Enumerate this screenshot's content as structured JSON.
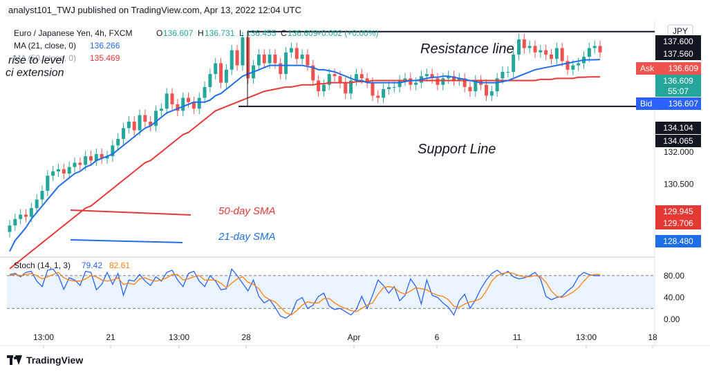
{
  "header": {
    "text": "analyst101_TWJ published on TradingView.com, Apr 13, 2022 12:04 UTC"
  },
  "footer": {
    "brand": "TradingView"
  },
  "legend": {
    "symbol": "Euro / Japanese Yen, 4h, FXCM",
    "ohlc": [
      {
        "k": "O",
        "v": "136.607"
      },
      {
        "k": "H",
        "v": "136.731"
      },
      {
        "k": "L",
        "v": "136.455"
      },
      {
        "k": "C",
        "v": "136.609"
      }
    ],
    "change": "+0.002 (+0.00%)",
    "ma21_label": "MA (21, close, 0)",
    "ma21_value": "136.266",
    "ma50_label": "MA (50, close, 0)",
    "ma50_value": "135.469",
    "overlay_line1": "rise to level",
    "overlay_line2": "ci extension"
  },
  "annotations": {
    "resistance": "Resistance line",
    "support": "Support Line",
    "sma50": "50-day SMA",
    "sma21": "21-day SMA"
  },
  "price_axis": {
    "currency": "JPY",
    "ticks": [
      "132.000",
      "130.500",
      "128.480"
    ],
    "markers": [
      {
        "text": "137.600",
        "style": "dark"
      },
      {
        "text": "137.560",
        "style": "dark"
      },
      {
        "text": "134.104",
        "style": "dark"
      },
      {
        "text": "134.065",
        "style": "dark"
      },
      {
        "text": "129.945",
        "style": "red"
      },
      {
        "text": "129.706",
        "style": "red"
      },
      {
        "text": "128.480",
        "style": "blue"
      }
    ],
    "ask": {
      "label": "Ask",
      "price": "136.609"
    },
    "last": {
      "price": "136.609",
      "countdown": "55:07"
    },
    "bid": {
      "label": "Bid",
      "price": "136.607"
    }
  },
  "stoch": {
    "label": "Stoch (14, 1, 3)",
    "k_value": "79.42",
    "d_value": "82.61",
    "ticks": [
      "80.00",
      "40.00",
      "0.00"
    ]
  },
  "time_axis": [
    "13:00",
    "21",
    "13:00",
    "28",
    "Apr",
    "6",
    "11",
    "13:00",
    "18"
  ],
  "chart_data": {
    "type": "line",
    "title": "Euro / Japanese Yen, 4h, FXCM",
    "price_range": [
      127.2,
      138.0
    ],
    "close": [
      128.6,
      128.9,
      129.1,
      129.0,
      129.4,
      129.8,
      130.2,
      130.9,
      131.1,
      131.2,
      131.0,
      131.3,
      131.5,
      131.4,
      131.8,
      131.6,
      131.9,
      131.7,
      131.8,
      132.3,
      132.6,
      133.1,
      133.4,
      133.0,
      133.7,
      133.4,
      133.2,
      133.9,
      134.0,
      134.7,
      134.2,
      133.9,
      134.5,
      134.3,
      134.0,
      134.5,
      135.0,
      135.6,
      136.1,
      135.2,
      135.8,
      136.7,
      136.0,
      137.3,
      135.4,
      136.0,
      136.5,
      136.1,
      136.5,
      136.1,
      135.6,
      136.6,
      136.8,
      136.3,
      136.5,
      136.0,
      135.3,
      134.8,
      135.1,
      135.6,
      135.5,
      135.2,
      134.7,
      135.3,
      135.6,
      135.4,
      135.2,
      134.6,
      134.5,
      134.9,
      135.0,
      135.0,
      135.3,
      135.4,
      135.1,
      135.2,
      135.5,
      135.6,
      135.4,
      135.1,
      135.4,
      135.5,
      135.3,
      135.4,
      135.0,
      134.8,
      135.3,
      135.1,
      134.6,
      134.8,
      135.4,
      135.7,
      135.7,
      136.5,
      137.2,
      136.8,
      136.9,
      136.6,
      136.7,
      136.5,
      136.3,
      136.8,
      136.2,
      135.8,
      136.0,
      136.1,
      136.4,
      136.8,
      136.9,
      136.6
    ],
    "ma21": [
      127.4,
      127.9,
      128.2,
      128.5,
      128.9,
      129.2,
      129.5,
      129.8,
      130.1,
      130.4,
      130.6,
      130.8,
      131.0,
      131.1,
      131.3,
      131.4,
      131.6,
      131.7,
      131.8,
      131.9,
      132.1,
      132.3,
      132.5,
      132.7,
      132.9,
      133.1,
      133.2,
      133.4,
      133.6,
      133.8,
      133.9,
      134.0,
      134.1,
      134.2,
      134.3,
      134.3,
      134.3,
      134.4,
      134.6,
      134.7,
      134.9,
      135.1,
      135.3,
      135.5,
      135.6,
      135.7,
      135.8,
      135.9,
      136.0,
      136.0,
      136.0,
      136.0,
      136.0,
      136.0,
      136.0,
      135.95,
      135.9,
      135.8,
      135.8,
      135.75,
      135.7,
      135.6,
      135.5,
      135.4,
      135.3,
      135.3,
      135.2,
      135.2,
      135.2,
      135.2,
      135.2,
      135.2,
      135.2,
      135.25,
      135.3,
      135.3,
      135.35,
      135.4,
      135.45,
      135.45,
      135.5,
      135.5,
      135.45,
      135.4,
      135.35,
      135.3,
      135.25,
      135.2,
      135.2,
      135.2,
      135.2,
      135.25,
      135.3,
      135.4,
      135.5,
      135.6,
      135.7,
      135.8,
      135.85,
      135.9,
      135.95,
      136.0,
      136.05,
      136.1,
      136.15,
      136.2,
      136.25,
      136.26,
      136.26,
      136.27
    ],
    "ma50": [
      126.6,
      126.8,
      127.0,
      127.2,
      127.4,
      127.6,
      127.8,
      128.0,
      128.2,
      128.4,
      128.6,
      128.8,
      129.0,
      129.2,
      129.4,
      129.5,
      129.7,
      129.9,
      130.1,
      130.3,
      130.5,
      130.7,
      130.9,
      131.1,
      131.3,
      131.5,
      131.6,
      131.8,
      132.0,
      132.2,
      132.4,
      132.6,
      132.8,
      132.9,
      133.1,
      133.3,
      133.5,
      133.7,
      133.9,
      134.0,
      134.1,
      134.2,
      134.3,
      134.4,
      134.5,
      134.6,
      134.7,
      134.8,
      134.85,
      134.9,
      134.95,
      135.0,
      135.0,
      135.05,
      135.1,
      135.1,
      135.1,
      135.15,
      135.15,
      135.2,
      135.2,
      135.2,
      135.2,
      135.2,
      135.25,
      135.25,
      135.25,
      135.3,
      135.3,
      135.3,
      135.3,
      135.3,
      135.3,
      135.3,
      135.3,
      135.3,
      135.3,
      135.3,
      135.3,
      135.3,
      135.3,
      135.3,
      135.3,
      135.3,
      135.3,
      135.3,
      135.3,
      135.3,
      135.3,
      135.3,
      135.3,
      135.3,
      135.3,
      135.3,
      135.3,
      135.3,
      135.3,
      135.3,
      135.35,
      135.35,
      135.35,
      135.4,
      135.4,
      135.4,
      135.4,
      135.45,
      135.45,
      135.47,
      135.47,
      135.47
    ],
    "resistance_level": 137.56,
    "support_level": 134.104,
    "stoch_k": [
      82,
      84,
      78,
      86,
      88,
      70,
      60,
      90,
      92,
      80,
      55,
      76,
      72,
      62,
      88,
      86,
      54,
      64,
      86,
      64,
      84,
      44,
      72,
      70,
      82,
      70,
      62,
      78,
      70,
      86,
      90,
      72,
      60,
      84,
      88,
      70,
      60,
      80,
      70,
      54,
      56,
      92,
      80,
      66,
      52,
      72,
      42,
      30,
      36,
      22,
      6,
      2,
      10,
      34,
      40,
      20,
      26,
      42,
      48,
      24,
      18,
      20,
      14,
      8,
      18,
      42,
      20,
      44,
      72,
      62,
      48,
      60,
      34,
      44,
      74,
      60,
      28,
      72,
      44,
      40,
      30,
      22,
      8,
      34,
      46,
      20,
      36,
      56,
      72,
      84,
      90,
      82,
      88,
      78,
      74,
      76,
      80,
      86,
      74,
      42,
      36,
      40,
      42,
      52,
      60,
      78,
      86,
      82,
      80,
      80
    ],
    "stoch_d": [
      80,
      82,
      80,
      82,
      84,
      80,
      74,
      78,
      82,
      86,
      76,
      72,
      70,
      70,
      74,
      80,
      78,
      72,
      70,
      72,
      76,
      64,
      66,
      64,
      74,
      76,
      72,
      70,
      72,
      76,
      82,
      82,
      72,
      74,
      78,
      80,
      72,
      72,
      72,
      66,
      58,
      66,
      74,
      78,
      68,
      64,
      56,
      42,
      36,
      32,
      22,
      12,
      8,
      16,
      26,
      32,
      30,
      30,
      38,
      38,
      30,
      24,
      20,
      16,
      14,
      20,
      26,
      30,
      46,
      58,
      60,
      58,
      50,
      46,
      52,
      58,
      56,
      54,
      48,
      44,
      42,
      36,
      24,
      22,
      28,
      32,
      34,
      38,
      52,
      70,
      80,
      84,
      86,
      84,
      80,
      78,
      78,
      80,
      78,
      68,
      52,
      42,
      40,
      44,
      50,
      58,
      70,
      80,
      82,
      82
    ],
    "time_labels": [
      "13:00",
      "21",
      "13:00",
      "28",
      "Apr",
      "6",
      "11",
      "13:00",
      "18"
    ]
  }
}
